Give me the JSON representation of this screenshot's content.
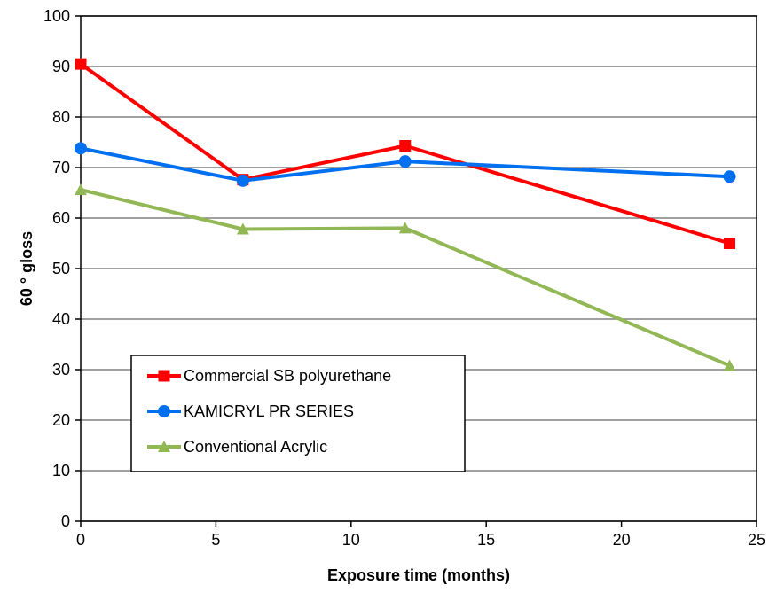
{
  "chart_data": {
    "type": "line",
    "xlabel": "Exposure time (months)",
    "ylabel": "60 ° gloss",
    "xlim": [
      0,
      25
    ],
    "ylim": [
      0,
      100
    ],
    "xticks": [
      0,
      5,
      10,
      15,
      20,
      25
    ],
    "yticks": [
      0,
      10,
      20,
      30,
      40,
      50,
      60,
      70,
      80,
      90,
      100
    ],
    "grid": "horizontal",
    "legend_position": "lower-left",
    "series": [
      {
        "name": "Commercial SB polyurethane",
        "color": "#ff0000",
        "marker": "square",
        "x": [
          0,
          6,
          12,
          24
        ],
        "y": [
          90.5,
          67.6,
          74.3,
          55
        ]
      },
      {
        "name": "KAMICRYL PR SERIES",
        "color": "#0070f0",
        "marker": "circle",
        "x": [
          0,
          6,
          12,
          24
        ],
        "y": [
          73.8,
          67.4,
          71.2,
          68.2
        ]
      },
      {
        "name": "Conventional Acrylic",
        "color": "#92b855",
        "marker": "triangle",
        "x": [
          0,
          6,
          12,
          24
        ],
        "y": [
          65.6,
          57.8,
          58,
          30.8
        ]
      }
    ]
  }
}
